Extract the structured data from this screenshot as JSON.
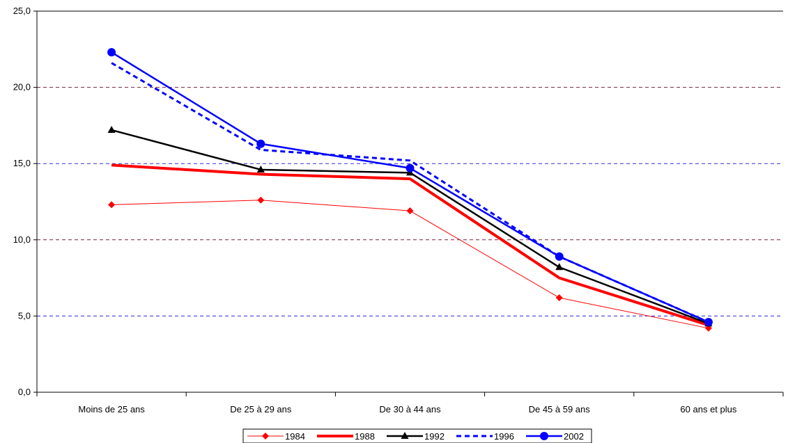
{
  "chart_data": {
    "type": "line",
    "title": "",
    "xlabel": "",
    "ylabel": "",
    "categories": [
      "Moins de 25 ans",
      "De 25 à 29 ans",
      "De 30 à 44 ans",
      "De 45 à 59 ans",
      "60 ans et plus"
    ],
    "ylim": [
      0,
      25
    ],
    "yticks": [
      "0,0",
      "5,0",
      "10,0",
      "15,0",
      "20,0",
      "25,0"
    ],
    "grid": "horizontal dashed",
    "legend_position": "bottom",
    "series": [
      {
        "name": "1984",
        "values": [
          12.3,
          12.6,
          11.9,
          6.2,
          4.2
        ],
        "color": "#ff0000",
        "style": "thin",
        "marker": "diamond"
      },
      {
        "name": "1988",
        "values": [
          14.9,
          14.3,
          14.0,
          7.5,
          4.4
        ],
        "color": "#ff0000",
        "style": "thick",
        "marker": "none"
      },
      {
        "name": "1992",
        "values": [
          17.2,
          14.6,
          14.4,
          8.2,
          4.5
        ],
        "color": "#000000",
        "style": "medium",
        "marker": "triangle"
      },
      {
        "name": "1996",
        "values": [
          21.6,
          15.9,
          15.2,
          8.9,
          4.6
        ],
        "color": "#0000ff",
        "style": "dashed",
        "marker": "none"
      },
      {
        "name": "2002",
        "values": [
          22.3,
          16.3,
          14.7,
          8.9,
          4.6
        ],
        "color": "#0000ff",
        "style": "medium",
        "marker": "circle"
      }
    ]
  }
}
